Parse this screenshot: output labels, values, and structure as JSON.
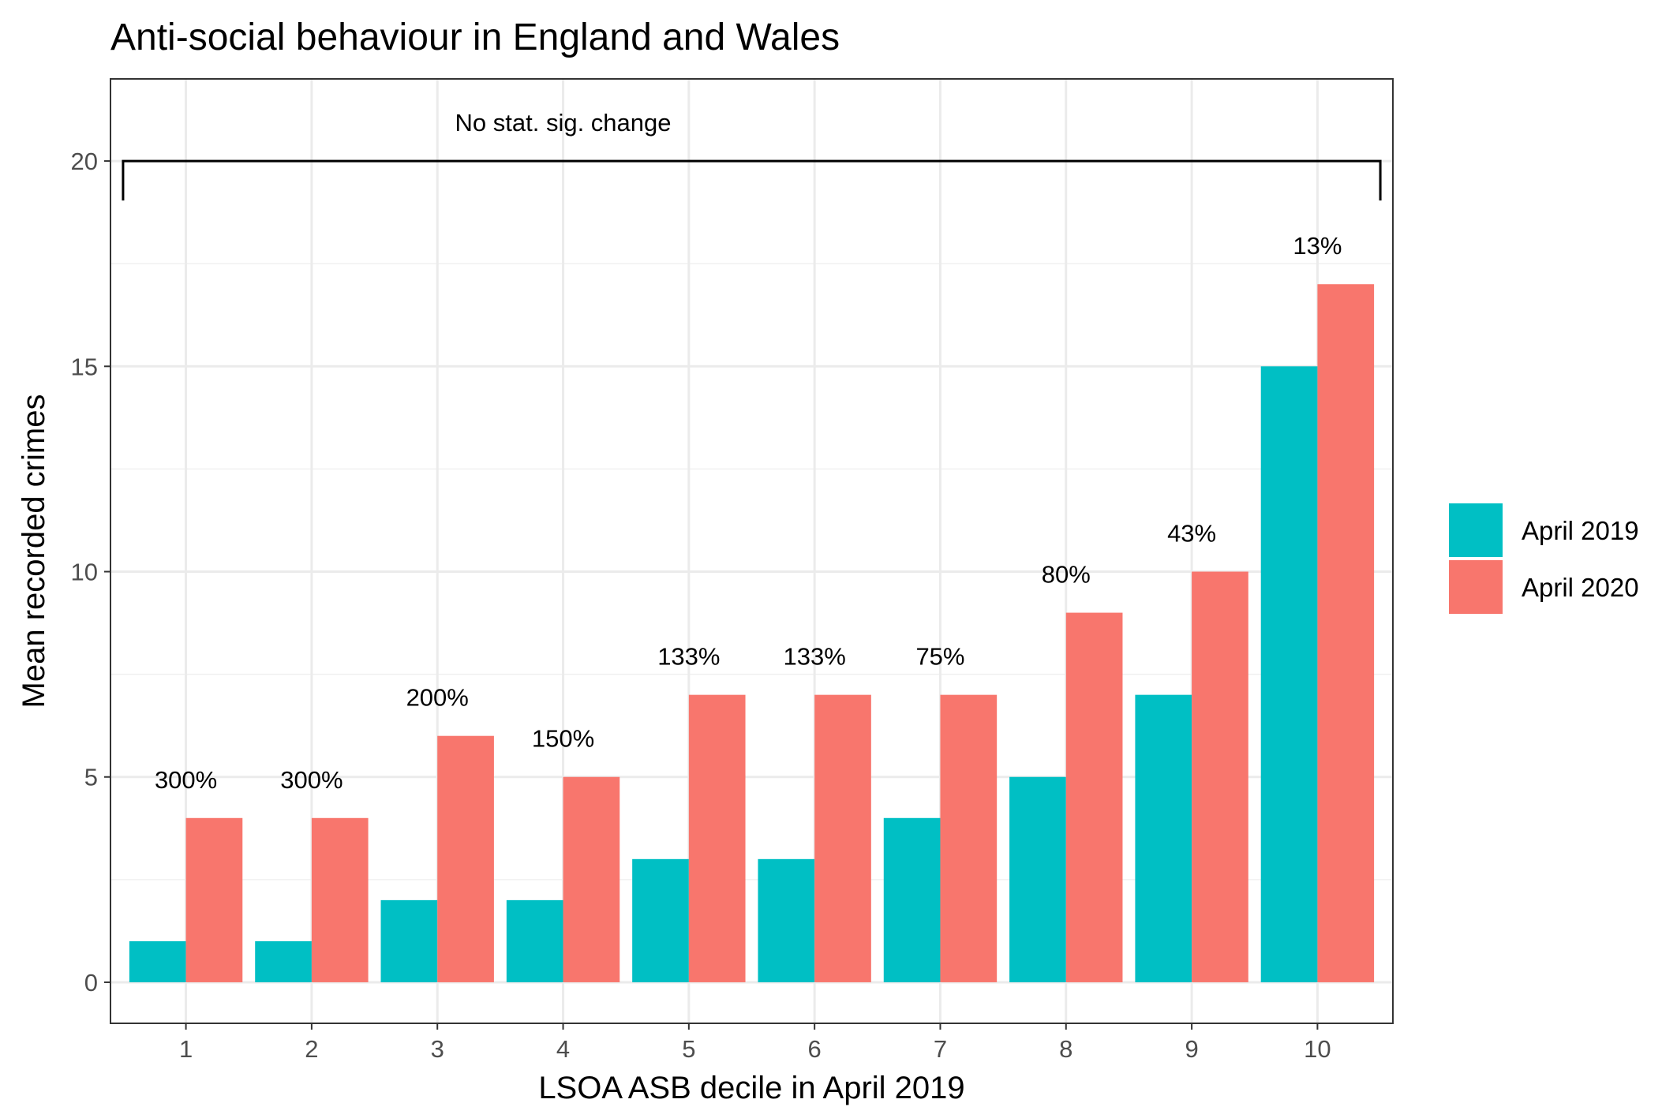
{
  "chart_data": {
    "type": "bar",
    "title": "Anti-social behaviour in England and Wales",
    "xlabel": "LSOA ASB decile in April 2019",
    "ylabel": "Mean recorded crimes",
    "categories": [
      "1",
      "2",
      "3",
      "4",
      "5",
      "6",
      "7",
      "8",
      "9",
      "10"
    ],
    "series": [
      {
        "name": "April 2019",
        "color": "#00BFC4",
        "values": [
          1,
          1,
          2,
          2,
          3,
          3,
          4,
          5,
          7,
          15
        ]
      },
      {
        "name": "April 2020",
        "color": "#F8766D",
        "values": [
          4,
          4,
          6,
          5,
          7,
          7,
          7,
          9,
          10,
          17
        ]
      }
    ],
    "bar_labels": [
      "300%",
      "300%",
      "200%",
      "150%",
      "133%",
      "133%",
      "75%",
      "80%",
      "43%",
      "13%"
    ],
    "ylim": [
      -1,
      22
    ],
    "yticks": [
      0,
      5,
      10,
      15,
      20
    ],
    "grid": true,
    "legend_position": "right",
    "annotation": {
      "text": "No stat. sig. change",
      "y": 20
    }
  }
}
